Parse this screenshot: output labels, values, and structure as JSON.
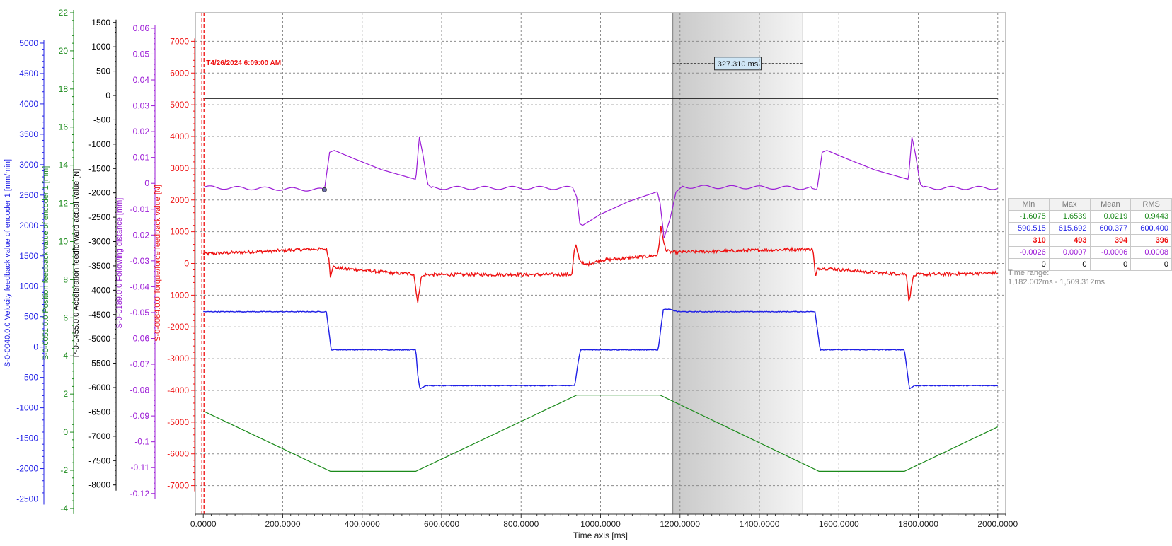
{
  "chart_data": {
    "type": "line",
    "xlabel": "Time axis [ms]",
    "xlim": [
      -20,
      2020
    ],
    "x_ticks": [
      "0.0000",
      "200.0000",
      "400.0000",
      "600.0000",
      "800.0000",
      "1000.0000",
      "1200.0000",
      "1400.0000",
      "1600.0000",
      "1800.0000",
      "2000.0000"
    ],
    "x_tick_values": [
      0,
      200,
      400,
      600,
      800,
      1000,
      1200,
      1400,
      1600,
      1800,
      2000
    ],
    "axes": [
      {
        "id": "vel",
        "label": "S-0-0040.0.0 Velocity feedback value of encoder 1 [mm/min]",
        "color": "#1f1fe6",
        "ylim": [
          -2750,
          5500
        ],
        "ticks": [
          5000,
          4500,
          4000,
          3500,
          3000,
          2500,
          2000,
          1500,
          1000,
          500,
          0,
          -500,
          -1000,
          -1500,
          -2000,
          -2500
        ]
      },
      {
        "id": "pos",
        "label": "S-0-0051.0.0 Position feedback value of encoder 1 [mm]",
        "color": "#1b8a1b",
        "ylim": [
          -4.3,
          22
        ],
        "ticks": [
          22,
          20,
          18,
          16,
          14,
          12,
          10,
          8,
          6,
          4,
          2,
          0,
          -2,
          -4
        ]
      },
      {
        "id": "acc",
        "label": "P-0-0455.0.0 Acceleration feedforward actual value [N]",
        "color": "#000000",
        "ylim": [
          -8600,
          1700
        ],
        "ticks": [
          1500,
          1000,
          500,
          0,
          -500,
          -1000,
          -1500,
          -2000,
          -2500,
          -3000,
          -3500,
          -4000,
          -4500,
          -5000,
          -5500,
          -6000,
          -6500,
          -7000,
          -7500,
          -8000
        ]
      },
      {
        "id": "fol",
        "label": "S-0-0189.0.0 Following distance [mm]",
        "color": "#9b1bd6",
        "ylim": [
          -0.128,
          0.066
        ],
        "ticks": [
          0.06,
          0.05,
          0.04,
          0.03,
          0.02,
          0.01,
          0,
          -0.01,
          -0.02,
          -0.03,
          -0.04,
          -0.05,
          -0.06,
          -0.07,
          -0.08,
          -0.09,
          -0.1,
          -0.11,
          -0.12
        ]
      },
      {
        "id": "trq",
        "label": "S-0-0084.0.0 Torque/force feedback value [N]",
        "color": "#ee1111",
        "ylim": [
          -7900,
          7900
        ],
        "ticks": [
          7000,
          6000,
          5000,
          4000,
          3000,
          2000,
          1000,
          0,
          -1000,
          -2000,
          -3000,
          -4000,
          -5000,
          -6000,
          -7000
        ]
      }
    ],
    "grid": true,
    "trigger": {
      "x": 0,
      "label": "T4/26/2024 6:09:00 AM",
      "color": "#ee1111"
    },
    "selection": {
      "x_start": 1182.002,
      "x_end": 1509.312,
      "duration_label": "327.310 ms",
      "y_level": 6300
    },
    "series": [
      {
        "axis": "trq",
        "color": "#000000",
        "noise": 0,
        "points": [
          [
            0,
            5200
          ],
          [
            2000,
            5200
          ]
        ]
      },
      {
        "axis": "trq",
        "color": "#9b1bd6",
        "noise": 0,
        "ripple": 50,
        "points": [
          [
            0,
            2400
          ],
          [
            305,
            2320
          ],
          [
            318,
            3500
          ],
          [
            330,
            3560
          ],
          [
            380,
            3300
          ],
          [
            450,
            2950
          ],
          [
            515,
            2720
          ],
          [
            535,
            2650
          ],
          [
            544,
            3980
          ],
          [
            552,
            3500
          ],
          [
            565,
            2500
          ],
          [
            575,
            2380
          ],
          [
            930,
            2380
          ],
          [
            940,
            2100
          ],
          [
            948,
            1250
          ],
          [
            955,
            1200
          ],
          [
            1000,
            1550
          ],
          [
            1070,
            1950
          ],
          [
            1143,
            2260
          ],
          [
            1150,
            1900
          ],
          [
            1160,
            800
          ],
          [
            1175,
            1400
          ],
          [
            1190,
            2250
          ],
          [
            1205,
            2420
          ],
          [
            1530,
            2380
          ],
          [
            1545,
            2320
          ],
          [
            1558,
            3500
          ],
          [
            1570,
            3560
          ],
          [
            1620,
            3300
          ],
          [
            1690,
            2950
          ],
          [
            1755,
            2720
          ],
          [
            1775,
            2650
          ],
          [
            1784,
            3980
          ],
          [
            1792,
            3500
          ],
          [
            1805,
            2500
          ],
          [
            1815,
            2380
          ],
          [
            2000,
            2380
          ]
        ]
      },
      {
        "axis": "trq",
        "color": "#ee1111",
        "noise": 50,
        "points": [
          [
            0,
            300
          ],
          [
            280,
            450
          ],
          [
            310,
            450
          ],
          [
            316,
            150
          ],
          [
            320,
            -400
          ],
          [
            326,
            -100
          ],
          [
            340,
            -150
          ],
          [
            480,
            -300
          ],
          [
            530,
            -330
          ],
          [
            540,
            -1250
          ],
          [
            548,
            -450
          ],
          [
            560,
            -350
          ],
          [
            928,
            -350
          ],
          [
            934,
            400
          ],
          [
            938,
            550
          ],
          [
            948,
            100
          ],
          [
            960,
            -50
          ],
          [
            1000,
            100
          ],
          [
            1142,
            250
          ],
          [
            1148,
            600
          ],
          [
            1152,
            1200
          ],
          [
            1158,
            700
          ],
          [
            1166,
            400
          ],
          [
            1180,
            350
          ],
          [
            1505,
            450
          ],
          [
            1535,
            450
          ],
          [
            1541,
            -450
          ],
          [
            1547,
            -150
          ],
          [
            1560,
            -150
          ],
          [
            1700,
            -300
          ],
          [
            1770,
            -330
          ],
          [
            1777,
            -1250
          ],
          [
            1786,
            -450
          ],
          [
            1795,
            -350
          ],
          [
            2000,
            -300
          ]
        ]
      },
      {
        "axis": "trq",
        "color": "#1f1fe6",
        "noise": 12,
        "points": [
          [
            0,
            -1520
          ],
          [
            310,
            -1520
          ],
          [
            322,
            -2720
          ],
          [
            535,
            -2720
          ],
          [
            540,
            -3500
          ],
          [
            545,
            -3950
          ],
          [
            560,
            -3850
          ],
          [
            935,
            -3850
          ],
          [
            945,
            -3000
          ],
          [
            950,
            -2720
          ],
          [
            1145,
            -2720
          ],
          [
            1158,
            -1450
          ],
          [
            1175,
            -1450
          ],
          [
            1195,
            -1520
          ],
          [
            1540,
            -1520
          ],
          [
            1553,
            -2720
          ],
          [
            1765,
            -2720
          ],
          [
            1778,
            -3950
          ],
          [
            1790,
            -3850
          ],
          [
            2000,
            -3850
          ]
        ]
      },
      {
        "axis": "trq",
        "color": "#1b8a1b",
        "noise": 0,
        "points": [
          [
            0,
            -4650
          ],
          [
            320,
            -6550
          ],
          [
            535,
            -6550
          ],
          [
            940,
            -4150
          ],
          [
            1150,
            -4150
          ],
          [
            1550,
            -6550
          ],
          [
            1765,
            -6550
          ],
          [
            2000,
            -5150
          ]
        ]
      }
    ]
  },
  "stats": {
    "headers": [
      "Min",
      "Max",
      "Mean",
      "RMS"
    ],
    "rows": [
      {
        "color": "#1b8a1b",
        "bold": false,
        "cells": [
          "-1.6075",
          "1.6539",
          "0.0219",
          "0.9443"
        ]
      },
      {
        "color": "#1f1fe6",
        "bold": false,
        "cells": [
          "590.515",
          "615.692",
          "600.377",
          "600.400"
        ]
      },
      {
        "color": "#ee1111",
        "bold": true,
        "cells": [
          "310",
          "493",
          "394",
          "396"
        ]
      },
      {
        "color": "#9b1bd6",
        "bold": false,
        "cells": [
          "-0.0026",
          "0.0007",
          "-0.0006",
          "0.0008"
        ]
      },
      {
        "color": "#000000",
        "bold": false,
        "cells": [
          "0",
          "0",
          "0",
          "0"
        ]
      }
    ]
  },
  "time_range": {
    "label": "Time range:",
    "value": "1,182.002ms - 1,509.312ms"
  }
}
